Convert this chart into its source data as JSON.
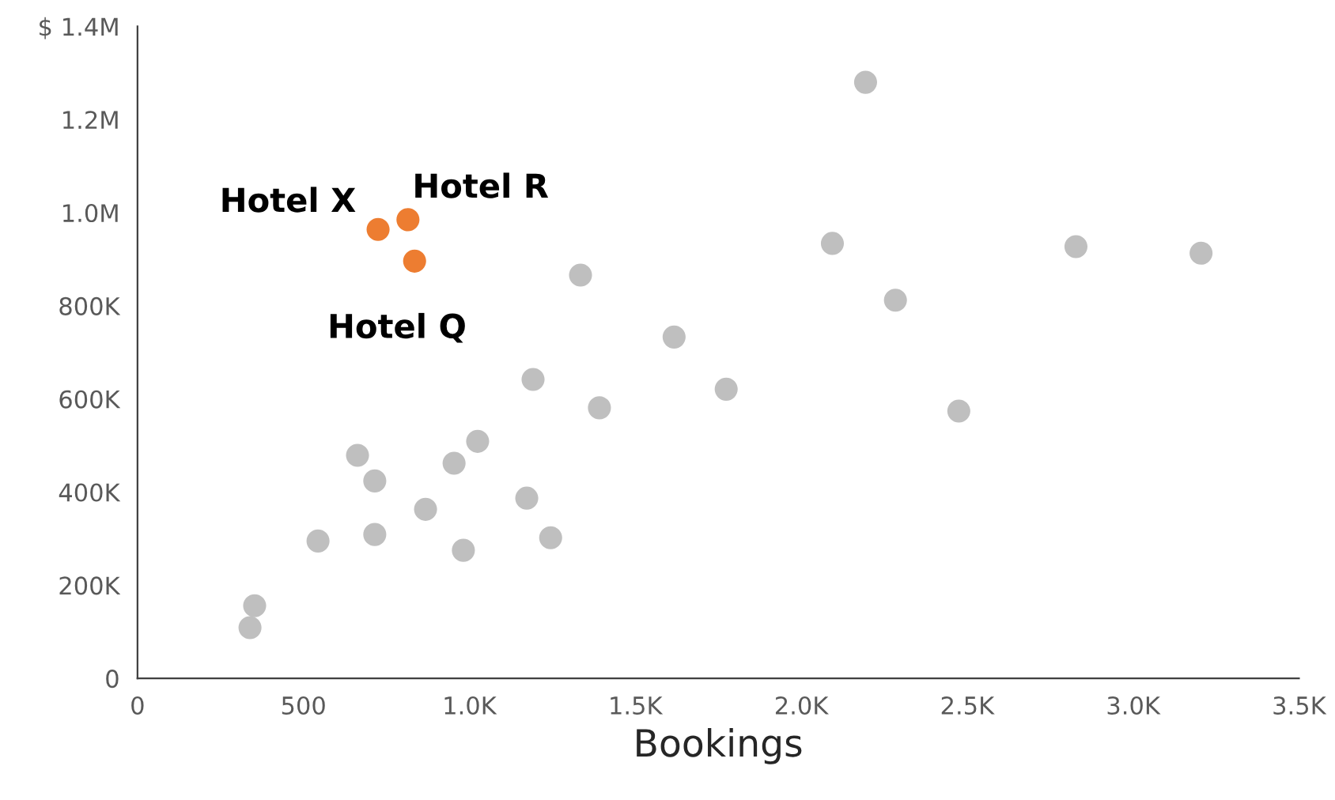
{
  "chart_data": {
    "type": "scatter",
    "xlabel": "Bookings",
    "xlim": [
      0,
      3500
    ],
    "xticks": [
      0,
      500,
      {
        "value": 1000,
        "label": "1.0K"
      },
      {
        "value": 1500,
        "label": "1.5K"
      },
      {
        "value": 2000,
        "label": "2.0K"
      },
      {
        "value": 2500,
        "label": "2.5K"
      },
      {
        "value": 3000,
        "label": "3.0K"
      },
      {
        "value": 3500,
        "label": "3.5K"
      }
    ],
    "ylim": [
      0,
      1400000
    ],
    "yticks": [
      0,
      {
        "value": 200000,
        "label": "200K"
      },
      {
        "value": 400000,
        "label": "400K"
      },
      {
        "value": 600000,
        "label": "600K"
      },
      {
        "value": 800000,
        "label": "800K"
      },
      {
        "value": 1000000,
        "label": "1.0M"
      },
      {
        "value": 1200000,
        "label": "1.2M"
      },
      {
        "value": 1400000,
        "label": "$ 1.4M"
      }
    ],
    "grid": false,
    "legend": false,
    "marker": "circle",
    "series": [
      {
        "color": "#bfbfbf",
        "x": [
          339,
          353,
          544,
          663,
          715,
          715,
          868,
          954,
          982,
          1025,
          1173,
          1192,
          1245,
          1335,
          1392,
          1617,
          1774,
          2094,
          2194,
          2284,
          2475,
          2828,
          3205
        ],
        "values": [
          109000,
          156000,
          295000,
          479000,
          424000,
          309000,
          363000,
          462000,
          275000,
          509000,
          387000,
          642000,
          302000,
          866000,
          581000,
          733000,
          621000,
          934000,
          1280000,
          812000,
          574000,
          927000,
          913000
        ]
      },
      {
        "color": "#ed7d31",
        "x": [
          725,
          815,
          835
        ],
        "values": [
          964000,
          985000,
          896000
        ]
      }
    ],
    "annotations": [
      {
        "text": "Hotel X",
        "x": 725,
        "y": 964000
      },
      {
        "text": "Hotel R",
        "x": 815,
        "y": 985000
      },
      {
        "text": "Hotel Q",
        "x": 835,
        "y": 896000
      }
    ]
  }
}
